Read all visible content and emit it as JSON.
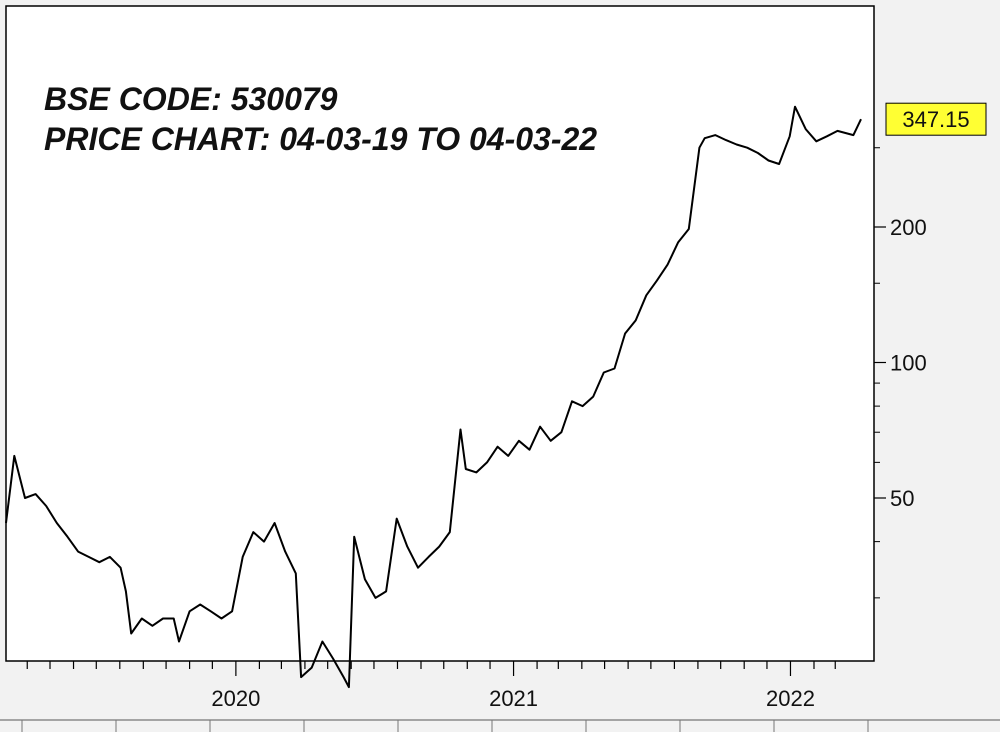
{
  "chart_data": {
    "type": "line",
    "title_lines": [
      "BSE CODE: 530079",
      "PRICE CHART: 04-03-19 TO 04-03-22"
    ],
    "xlabel": "",
    "ylabel": "",
    "x_tick_labels": [
      "2020",
      "2021",
      "2022"
    ],
    "y_tick_labels": [
      "50",
      "100",
      "200"
    ],
    "y_scale": "log",
    "ylim": [
      18,
      420
    ],
    "xlim": [
      "2019-03-04",
      "2022-04-10"
    ],
    "grid": false,
    "last_price_label": "347.15",
    "last_price_color": "#ffff33",
    "line_color": "#000000",
    "series": [
      {
        "x": [
          "2019-03-04",
          "2019-03-15",
          "2019-03-29",
          "2019-04-12",
          "2019-04-26",
          "2019-05-10",
          "2019-05-24",
          "2019-06-07",
          "2019-06-21",
          "2019-07-05",
          "2019-07-19",
          "2019-08-02",
          "2019-08-09",
          "2019-08-16",
          "2019-08-30",
          "2019-09-13",
          "2019-09-27",
          "2019-10-11",
          "2019-10-18",
          "2019-11-01",
          "2019-11-15",
          "2019-11-29",
          "2019-12-13",
          "2019-12-27",
          "2020-01-10",
          "2020-01-24",
          "2020-02-07",
          "2020-02-21",
          "2020-03-06",
          "2020-03-20",
          "2020-03-27",
          "2020-04-10",
          "2020-04-24",
          "2020-05-08",
          "2020-05-22",
          "2020-05-29",
          "2020-06-05",
          "2020-06-19",
          "2020-07-03",
          "2020-07-17",
          "2020-07-31",
          "2020-08-14",
          "2020-08-28",
          "2020-09-11",
          "2020-09-25",
          "2020-10-09",
          "2020-10-23",
          "2020-10-30",
          "2020-11-13",
          "2020-11-27",
          "2020-12-11",
          "2020-12-25",
          "2021-01-08",
          "2021-01-22",
          "2021-02-05",
          "2021-02-19",
          "2021-03-05",
          "2021-03-19",
          "2021-04-02",
          "2021-04-16",
          "2021-04-30",
          "2021-05-14",
          "2021-05-28",
          "2021-06-11",
          "2021-06-25",
          "2021-07-09",
          "2021-07-23",
          "2021-08-06",
          "2021-08-20",
          "2021-09-03",
          "2021-09-10",
          "2021-09-24",
          "2021-10-08",
          "2021-10-22",
          "2021-11-05",
          "2021-11-19",
          "2021-12-03",
          "2021-12-17",
          "2021-12-31",
          "2022-01-07",
          "2022-01-21",
          "2022-02-04",
          "2022-02-18",
          "2022-03-04",
          "2022-03-25",
          "2022-04-04"
        ],
        "y": [
          44,
          62,
          50,
          51,
          48,
          44,
          41,
          38,
          37,
          36,
          37,
          35,
          31,
          25,
          27,
          26,
          27,
          27,
          24,
          28,
          29,
          28,
          27,
          28,
          37,
          42,
          40,
          44,
          38,
          34,
          20,
          21,
          24,
          22,
          20,
          19,
          41,
          33,
          30,
          31,
          45,
          39,
          35,
          37,
          39,
          42,
          71,
          58,
          57,
          60,
          65,
          62,
          67,
          64,
          72,
          67,
          70,
          82,
          80,
          84,
          95,
          97,
          116,
          124,
          141,
          152,
          165,
          185,
          198,
          300,
          315,
          320,
          312,
          305,
          300,
          292,
          281,
          276,
          318,
          370,
          330,
          310,
          318,
          327,
          320,
          347.15
        ]
      }
    ]
  }
}
